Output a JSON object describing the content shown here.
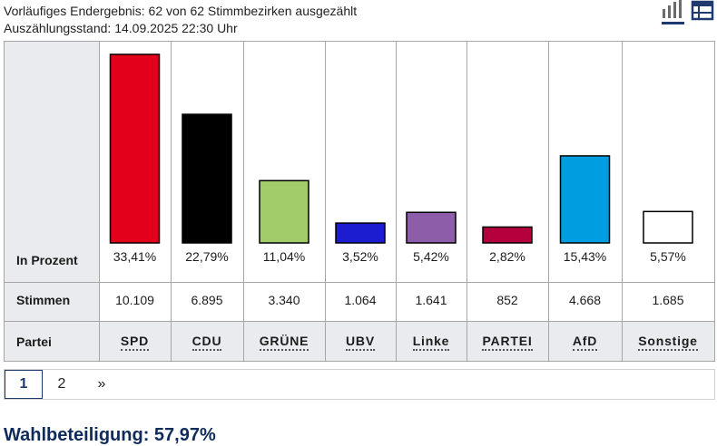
{
  "header": {
    "line1": "Vorläufiges Endergebnis: 62 von 62 Stimmbezirken ausgezählt",
    "line2": "Auszählungsstand: 14.09.2025 22:30 Uhr",
    "chart_view_icon": "bar-chart-icon",
    "table_view_icon": "table-icon",
    "accent_color": "#1f3a6e"
  },
  "rows": {
    "percent_label": "In Prozent",
    "votes_label": "Stimmen",
    "party_label": "Partei"
  },
  "parties": [
    {
      "name": "SPD",
      "percent_text": "33,41%",
      "votes": "10.109",
      "color": "#e3001b"
    },
    {
      "name": "CDU",
      "percent_text": "22,79%",
      "votes": "6.895",
      "color": "#000000"
    },
    {
      "name": "GRÜNE",
      "percent_text": "11,04%",
      "votes": "3.340",
      "color": "#a2cc69"
    },
    {
      "name": "UBV",
      "percent_text": "3,52%",
      "votes": "1.064",
      "color": "#1c1cd0"
    },
    {
      "name": "Linke",
      "percent_text": "5,42%",
      "votes": "1.641",
      "color": "#8e5da9"
    },
    {
      "name": "PARTEI",
      "percent_text": "2,82%",
      "votes": "852",
      "color": "#b5003e"
    },
    {
      "name": "AfD",
      "percent_text": "15,43%",
      "votes": "4.668",
      "color": "#009ee0"
    },
    {
      "name": "Sonstige",
      "percent_text": "5,57%",
      "votes": "1.685",
      "color": "#ffffff"
    }
  ],
  "chart_data": {
    "type": "bar",
    "categories": [
      "SPD",
      "CDU",
      "GRÜNE",
      "UBV",
      "Linke",
      "PARTEI",
      "AfD",
      "Sonstige"
    ],
    "values": [
      33.41,
      22.79,
      11.04,
      3.52,
      5.42,
      2.82,
      15.43,
      5.57
    ],
    "ylim": [
      0,
      33.41
    ],
    "grid": false,
    "legend": "none"
  },
  "pagination": {
    "pages": [
      "1",
      "2"
    ],
    "current": "1",
    "next_label": "»"
  },
  "turnout": "Wahlbeteiligung: 57,97%"
}
